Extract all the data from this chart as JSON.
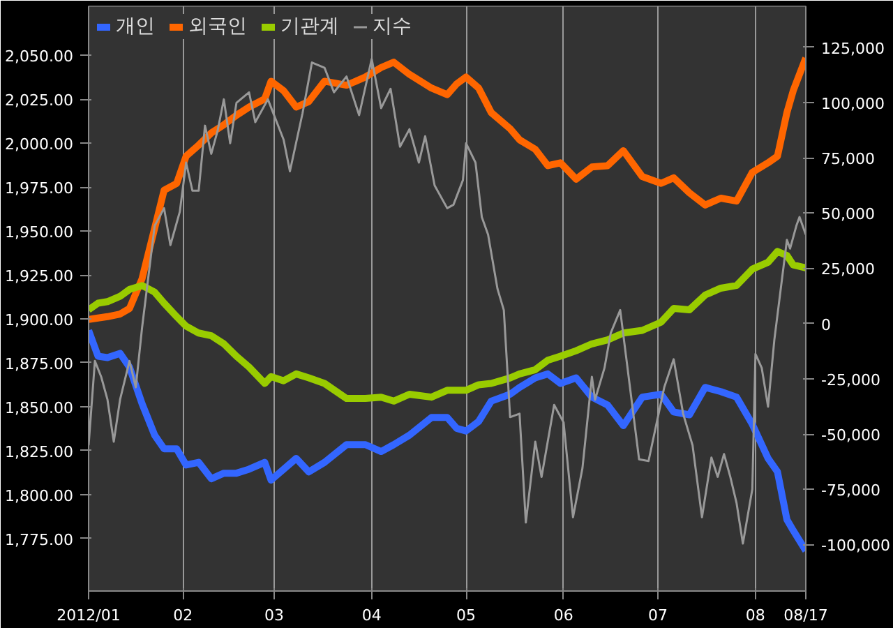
{
  "chart_data": {
    "type": "line",
    "x": [
      "2012-01-02",
      "2012-01-05",
      "2012-01-08",
      "2012-01-12",
      "2012-01-15",
      "2012-01-19",
      "2012-01-23",
      "2012-01-26",
      "2012-01-30",
      "2012-02-02",
      "2012-02-06",
      "2012-02-10",
      "2012-02-14",
      "2012-02-18",
      "2012-02-22",
      "2012-02-27",
      "2012-02-29",
      "2012-03-04",
      "2012-03-08",
      "2012-03-12",
      "2012-03-17",
      "2012-03-24",
      "2012-03-30",
      "2012-04-04",
      "2012-04-08",
      "2012-04-13",
      "2012-04-20",
      "2012-04-25",
      "2012-04-28",
      "2012-05-01",
      "2012-05-05",
      "2012-05-09",
      "2012-05-15",
      "2012-05-18",
      "2012-05-23",
      "2012-05-27",
      "2012-05-31",
      "2012-06-05",
      "2012-06-10",
      "2012-06-15",
      "2012-06-20",
      "2012-06-26",
      "2012-07-02",
      "2012-07-06",
      "2012-07-11",
      "2012-07-16",
      "2012-07-21",
      "2012-07-26",
      "2012-07-31",
      "2012-08-05",
      "2012-08-08",
      "2012-08-11",
      "2012-08-13",
      "2012-08-17"
    ],
    "series": [
      {
        "name": "개인",
        "color": "#3366ff",
        "axis": "y2",
        "values": [
          -3100,
          -14800,
          -15400,
          -13500,
          -19700,
          -36300,
          -50500,
          -56700,
          -56700,
          -64000,
          -62800,
          -70200,
          -67700,
          -67700,
          -65900,
          -62800,
          -70800,
          -65900,
          -61000,
          -67100,
          -62800,
          -54800,
          -54800,
          -57900,
          -54800,
          -50500,
          -42500,
          -42500,
          -47400,
          -48600,
          -44300,
          -35100,
          -32000,
          -28900,
          -24600,
          -22800,
          -27100,
          -24600,
          -33300,
          -36900,
          -46200,
          -33300,
          -32000,
          -40000,
          -41300,
          -28900,
          -30800,
          -33300,
          -45600,
          -61000,
          -67100,
          -88700,
          -93600,
          -102800
        ]
      },
      {
        "name": "외국인",
        "color": "#ff6600",
        "axis": "y2",
        "values": [
          1800,
          2500,
          3100,
          4300,
          6800,
          20300,
          43100,
          60300,
          63400,
          75700,
          80700,
          86200,
          89900,
          94200,
          97900,
          101600,
          109600,
          105300,
          97900,
          100400,
          109600,
          107800,
          111500,
          115800,
          118200,
          112700,
          106500,
          103500,
          108400,
          111500,
          106500,
          95400,
          88100,
          83100,
          78800,
          71400,
          72700,
          65300,
          70800,
          71400,
          78200,
          66500,
          63400,
          65900,
          59100,
          53600,
          56700,
          55400,
          68400,
          72700,
          75700,
          95400,
          105300,
          120100
        ]
      },
      {
        "name": "기관계",
        "color": "#99cc00",
        "axis": "y2",
        "values": [
          6200,
          9200,
          9900,
          12300,
          15400,
          17200,
          14200,
          9200,
          3100,
          -1200,
          -4300,
          -5500,
          -9200,
          -14800,
          -19700,
          -27100,
          -24000,
          -25900,
          -22800,
          -24600,
          -27100,
          -33900,
          -33900,
          -33300,
          -35100,
          -32000,
          -33300,
          -30200,
          -30200,
          -30200,
          -27700,
          -27100,
          -24600,
          -22800,
          -20900,
          -16600,
          -14800,
          -12300,
          -9200,
          -7400,
          -4300,
          -3100,
          600,
          6800,
          6200,
          12900,
          16000,
          17200,
          24600,
          27700,
          32600,
          30800,
          26500,
          25200
        ]
      },
      {
        "name": "지수",
        "color": "#999999",
        "axis": "y",
        "x": [
          "2012-01-02",
          "2012-01-04",
          "2012-01-06",
          "2012-01-08",
          "2012-01-10",
          "2012-01-12",
          "2012-01-15",
          "2012-01-17",
          "2012-01-19",
          "2012-01-23",
          "2012-01-26",
          "2012-01-28",
          "2012-01-31",
          "2012-02-02",
          "2012-02-04",
          "2012-02-06",
          "2012-02-08",
          "2012-02-10",
          "2012-02-12",
          "2012-02-14",
          "2012-02-16",
          "2012-02-18",
          "2012-02-22",
          "2012-02-24",
          "2012-02-28",
          "2012-03-04",
          "2012-03-06",
          "2012-03-10",
          "2012-03-13",
          "2012-03-17",
          "2012-03-20",
          "2012-03-24",
          "2012-03-28",
          "2012-04-01",
          "2012-04-04",
          "2012-04-07",
          "2012-04-10",
          "2012-04-13",
          "2012-04-16",
          "2012-04-18",
          "2012-04-21",
          "2012-04-25",
          "2012-04-27",
          "2012-04-30",
          "2012-05-01",
          "2012-05-04",
          "2012-05-06",
          "2012-05-08",
          "2012-05-11",
          "2012-05-13",
          "2012-05-15",
          "2012-05-18",
          "2012-05-20",
          "2012-05-23",
          "2012-05-25",
          "2012-05-29",
          "2012-06-01",
          "2012-06-04",
          "2012-06-07",
          "2012-06-10",
          "2012-06-11",
          "2012-06-14",
          "2012-06-16",
          "2012-06-19",
          "2012-06-25",
          "2012-06-28",
          "2012-07-03",
          "2012-07-06",
          "2012-07-09",
          "2012-07-12",
          "2012-07-15",
          "2012-07-18",
          "2012-07-20",
          "2012-07-22",
          "2012-07-24",
          "2012-07-26",
          "2012-07-28",
          "2012-07-31",
          "2012-08-01",
          "2012-08-03",
          "2012-08-05",
          "2012-08-07",
          "2012-08-11",
          "2012-08-12",
          "2012-08-14",
          "2012-08-15",
          "2012-08-17"
        ],
        "values": [
          1828,
          1876,
          1867,
          1854,
          1830,
          1854,
          1876,
          1861,
          1895,
          1953,
          1963,
          1942,
          1961,
          1989,
          1973,
          1973,
          2010,
          1994,
          2007,
          2025,
          2000,
          2023,
          2029,
          2012,
          2025,
          2002,
          1984,
          2017,
          2046,
          2043,
          2029,
          2038,
          2016,
          2048,
          2020,
          2031,
          1998,
          2008,
          1989,
          2004,
          1976,
          1963,
          1965,
          1979,
          2000,
          1989,
          1958,
          1948,
          1917,
          1905,
          1844,
          1846,
          1784,
          1830,
          1810,
          1851,
          1841,
          1787,
          1815,
          1867,
          1854,
          1872,
          1892,
          1905,
          1820,
          1819,
          1861,
          1877,
          1846,
          1828,
          1787,
          1821,
          1810,
          1823,
          1810,
          1795,
          1772,
          1803,
          1880,
          1872,
          1850,
          1888,
          1945,
          1940,
          1953,
          1958,
          1948
        ]
      }
    ],
    "xlim": [
      "2012-01-02",
      "2012-08-17"
    ],
    "xticks": [
      {
        "value": "2012-01-02",
        "label": "2012/01"
      },
      {
        "value": "2012-02-01",
        "label": "02"
      },
      {
        "value": "2012-03-01",
        "label": "03"
      },
      {
        "value": "2012-04-01",
        "label": "04"
      },
      {
        "value": "2012-05-01",
        "label": "05"
      },
      {
        "value": "2012-06-01",
        "label": "06"
      },
      {
        "value": "2012-07-01",
        "label": "07"
      },
      {
        "value": "2012-08-01",
        "label": "08"
      },
      {
        "value": "2012-08-17",
        "label": "08/17"
      }
    ],
    "ylim": [
      1745,
      2078
    ],
    "yticks": [
      {
        "value": 1775,
        "label": "1,775.00"
      },
      {
        "value": 1800,
        "label": "1,800.00"
      },
      {
        "value": 1825,
        "label": "1,825.00"
      },
      {
        "value": 1850,
        "label": "1,850.00"
      },
      {
        "value": 1875,
        "label": "1,875.00"
      },
      {
        "value": 1900,
        "label": "1,900.00"
      },
      {
        "value": 1925,
        "label": "1,925.00"
      },
      {
        "value": 1950,
        "label": "1,950.00"
      },
      {
        "value": 1975,
        "label": "1,975.00"
      },
      {
        "value": 2000,
        "label": "2,000.00"
      },
      {
        "value": 2025,
        "label": "2,025.00"
      },
      {
        "value": 2050,
        "label": "2,050.00"
      }
    ],
    "y2lim": [
      -121000,
      143500
    ],
    "y2ticks": [
      {
        "value": -100000,
        "label": "-100,000"
      },
      {
        "value": -75000,
        "label": "-75,000"
      },
      {
        "value": -50000,
        "label": "-50,000"
      },
      {
        "value": -25000,
        "label": "-25,000"
      },
      0,
      {
        "value": 25000,
        "label": "25,000"
      },
      {
        "value": 50000,
        "label": "50,000"
      },
      {
        "value": 75000,
        "label": "75,000"
      },
      {
        "value": 100000,
        "label": "100,000"
      },
      {
        "value": 125000,
        "label": "125,000"
      }
    ],
    "grid": "x",
    "legend": "top left"
  }
}
